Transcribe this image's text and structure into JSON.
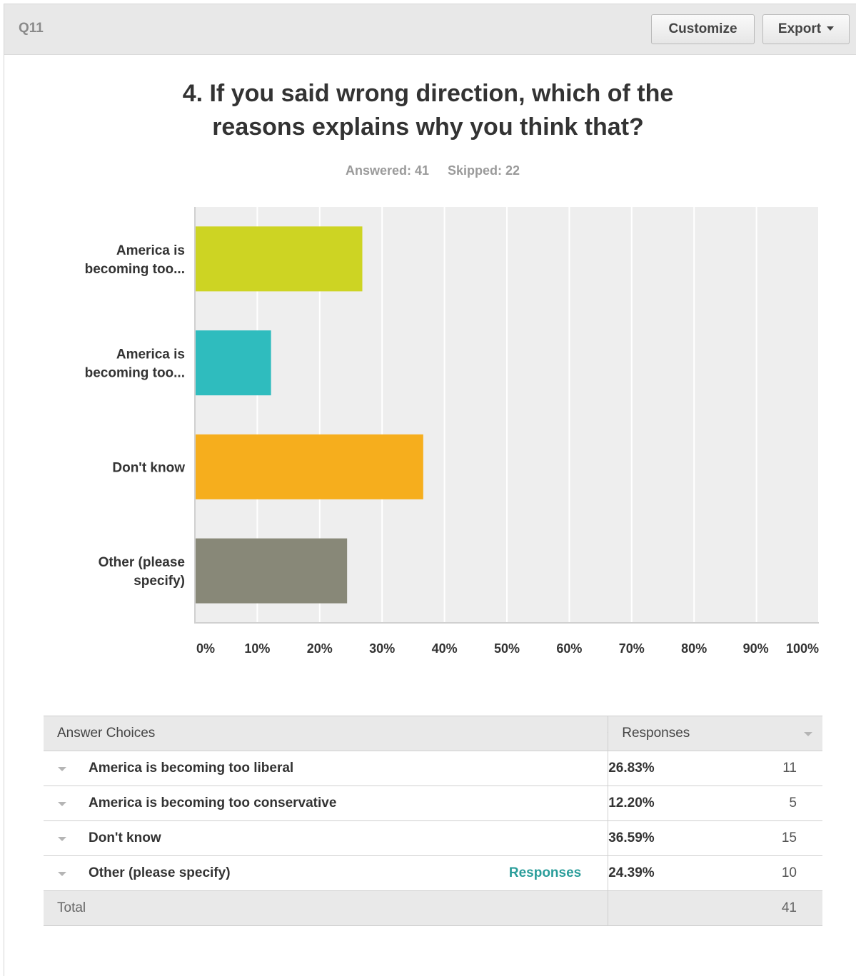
{
  "header": {
    "question_id": "Q11",
    "customize_label": "Customize",
    "export_label": "Export"
  },
  "question": {
    "title_line1": "4. If you said wrong direction, which of the",
    "title_line2": "reasons explains why you think that?",
    "answered": "Answered: 41",
    "skipped": "Skipped: 22"
  },
  "chart_data": {
    "type": "bar",
    "orientation": "horizontal",
    "categories": [
      [
        "America is",
        "becoming too..."
      ],
      [
        "America is",
        "becoming too..."
      ],
      [
        "Don't know"
      ],
      [
        "Other (please",
        "specify)"
      ]
    ],
    "values": [
      26.83,
      12.2,
      36.59,
      24.39
    ],
    "colors": [
      "#cdd423",
      "#2fbcbe",
      "#f6ae1d",
      "#888878"
    ],
    "xlim": [
      0,
      100
    ],
    "xticks": [
      "0%",
      "10%",
      "20%",
      "30%",
      "40%",
      "50%",
      "60%",
      "70%",
      "80%",
      "90%",
      "100%"
    ],
    "grid": true,
    "plot_background": "#eeeeee"
  },
  "table": {
    "header_choices": "Answer Choices",
    "header_responses": "Responses",
    "rows": [
      {
        "choice": "America is becoming too liberal",
        "percent": "26.83%",
        "count": "11"
      },
      {
        "choice": "America is becoming too conservative",
        "percent": "12.20%",
        "count": "5"
      },
      {
        "choice": "Don't know",
        "percent": "36.59%",
        "count": "15"
      },
      {
        "choice": "Other (please specify)",
        "percent": "24.39%",
        "count": "10",
        "link": "Responses"
      }
    ],
    "total_label": "Total",
    "total_count": "41"
  }
}
